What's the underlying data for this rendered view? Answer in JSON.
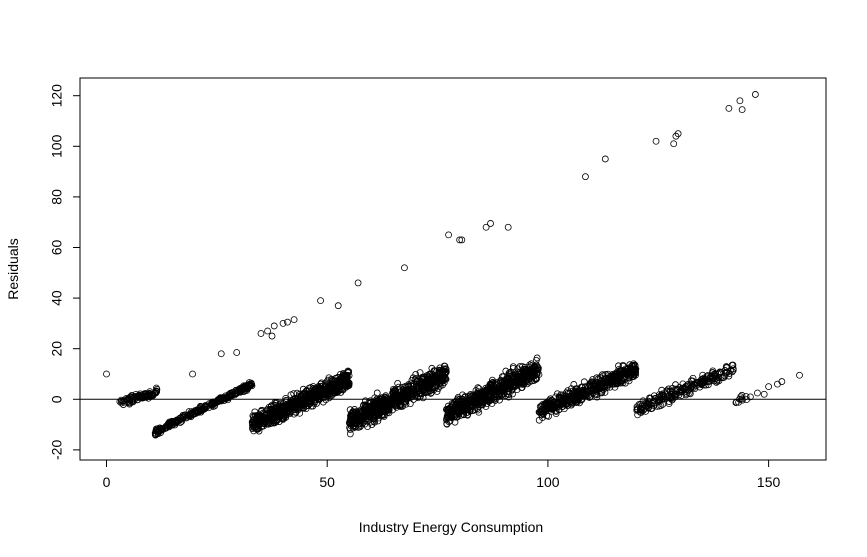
{
  "chart_data": {
    "type": "scatter",
    "title": "",
    "xlabel": "Industry Energy Consumption",
    "ylabel": "Residuals",
    "xlim": [
      -6,
      163
    ],
    "ylim": [
      -24,
      127
    ],
    "xticks": [
      0,
      50,
      100,
      150
    ],
    "yticks": [
      -20,
      0,
      20,
      40,
      60,
      80,
      100,
      120
    ],
    "grid": false,
    "legend": "none",
    "reference_line": {
      "y": 0
    },
    "marker": "open-circle",
    "outliers": [
      {
        "x": 0,
        "y": 10
      },
      {
        "x": 19.5,
        "y": 10
      },
      {
        "x": 26,
        "y": 18
      },
      {
        "x": 29.5,
        "y": 18.5
      },
      {
        "x": 35,
        "y": 26
      },
      {
        "x": 36.5,
        "y": 27
      },
      {
        "x": 37.5,
        "y": 25
      },
      {
        "x": 38,
        "y": 29
      },
      {
        "x": 40,
        "y": 30
      },
      {
        "x": 41,
        "y": 30.5
      },
      {
        "x": 42.5,
        "y": 31.5
      },
      {
        "x": 48.5,
        "y": 39
      },
      {
        "x": 52.5,
        "y": 37
      },
      {
        "x": 57,
        "y": 46
      },
      {
        "x": 67.5,
        "y": 52
      },
      {
        "x": 77.5,
        "y": 65
      },
      {
        "x": 80,
        "y": 63
      },
      {
        "x": 80.5,
        "y": 63
      },
      {
        "x": 86,
        "y": 68
      },
      {
        "x": 87,
        "y": 69.5
      },
      {
        "x": 91,
        "y": 68
      },
      {
        "x": 108.5,
        "y": 88
      },
      {
        "x": 113,
        "y": 95
      },
      {
        "x": 124.5,
        "y": 102
      },
      {
        "x": 128.5,
        "y": 101
      },
      {
        "x": 129,
        "y": 104
      },
      {
        "x": 129.5,
        "y": 105
      },
      {
        "x": 141,
        "y": 115
      },
      {
        "x": 143.5,
        "y": 118
      },
      {
        "x": 144,
        "y": 114.5
      },
      {
        "x": 147,
        "y": 120.5
      },
      {
        "x": 149,
        "y": 2
      },
      {
        "x": 150,
        "y": 5
      },
      {
        "x": 152,
        "y": 6
      },
      {
        "x": 153,
        "y": 7
      },
      {
        "x": 157,
        "y": 9.5
      }
    ],
    "bands": [
      {
        "x_start": 3,
        "x_end": 11.5,
        "y_start": -1.5,
        "y_end": 3,
        "spread": 3,
        "count": 90
      },
      {
        "x_start": 11,
        "x_end": 33,
        "y_start": -13,
        "y_end": 6,
        "spread": 2.5,
        "count": 260
      },
      {
        "x_start": 33,
        "x_end": 55,
        "y_start": -10,
        "y_end": 8,
        "spread": 8,
        "count": 700
      },
      {
        "x_start": 55,
        "x_end": 77,
        "y_start": -9,
        "y_end": 10,
        "spread": 9,
        "count": 700
      },
      {
        "x_start": 77,
        "x_end": 98,
        "y_start": -6,
        "y_end": 12,
        "spread": 9,
        "count": 650
      },
      {
        "x_start": 98,
        "x_end": 120,
        "y_start": -5,
        "y_end": 12,
        "spread": 7,
        "count": 500
      },
      {
        "x_start": 120,
        "x_end": 142,
        "y_start": -4,
        "y_end": 12,
        "spread": 6,
        "count": 220
      },
      {
        "x_start": 142,
        "x_end": 148,
        "y_start": -1,
        "y_end": 2,
        "spread": 3,
        "count": 12
      }
    ]
  }
}
